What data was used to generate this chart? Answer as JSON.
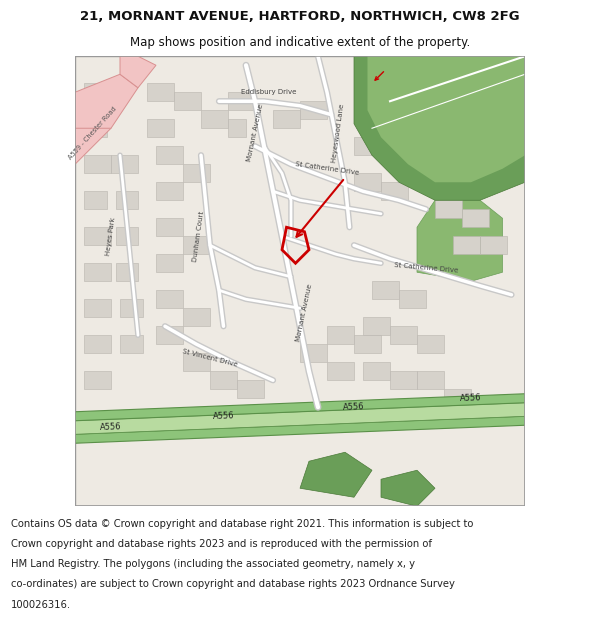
{
  "title_line1": "21, MORNANT AVENUE, HARTFORD, NORTHWICH, CW8 2FG",
  "title_line2": "Map shows position and indicative extent of the property.",
  "footer_lines": [
    "Contains OS data © Crown copyright and database right 2021. This information is subject to",
    "Crown copyright and database rights 2023 and is reproduced with the permission of",
    "HM Land Registry. The polygons (including the associated geometry, namely x, y",
    "co-ordinates) are subject to Crown copyright and database rights 2023 Ordnance Survey",
    "100026316."
  ],
  "title_fontsize": 9.5,
  "title2_fontsize": 8.5,
  "footer_fontsize": 7.2,
  "bg_color": "#ffffff",
  "map_bg": "#eeeae3",
  "road_white": "#ffffff",
  "road_gray": "#c8c8c8",
  "building_fill": "#d6d2cb",
  "building_outline": "#b8b4ae",
  "green_dark": "#6a9e58",
  "green_mid": "#8ab870",
  "green_light": "#b8d9a0",
  "pink_fill": "#f2c4c4",
  "pink_edge": "#d89090",
  "a556_fill": "#8dc47a",
  "a556_light": "#b8dba0",
  "a556_edge": "#5a9048",
  "property_color": "#cc0000",
  "arrow_color": "#cc0000",
  "title_color": "#111111",
  "footer_color": "#222222",
  "border_color": "#999999"
}
